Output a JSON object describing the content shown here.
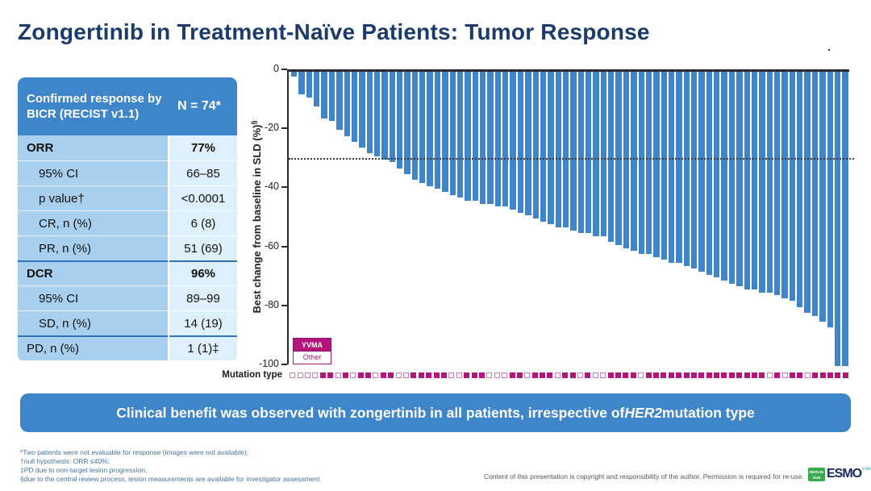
{
  "slide": {
    "title": "Zongertinib in Treatment-Naïve Patients: Tumor Response",
    "stray_dot": ".",
    "banner": {
      "pre": "Clinical benefit was observed with zongertinib in all patients, irrespective of ",
      "em": "HER2",
      "post": " mutation type"
    },
    "footnotes": [
      "*Two patients were not evaluable for response (images were not available);",
      "†null hypothesis: ORR ≤40%;",
      "‡PD due to non-target lesion progression;",
      "§due to the central review process, lesion measurements are available for investigator assessment"
    ],
    "copyright": "Content of this presentation is copyright and responsibility of the author. Permission is required for re-use.",
    "logo": {
      "city": "BERLIN",
      "year": "2025",
      "name": "ESMO",
      "congress": "congress"
    }
  },
  "table": {
    "header": {
      "label": "Confirmed response by BICR (RECIST v1.1)",
      "value": "N = 74*"
    },
    "rows": [
      {
        "label": "ORR",
        "value": "77%"
      },
      {
        "label": "95% CI",
        "value": "66–85"
      },
      {
        "label": "p value†",
        "value": "<0.0001"
      },
      {
        "label": "CR, n (%)",
        "value": "6 (8)"
      },
      {
        "label": "PR, n (%)",
        "value": "51 (69)"
      },
      {
        "label": "DCR",
        "value": "96%"
      },
      {
        "label": "95% CI",
        "value": "89–99"
      },
      {
        "label": "SD, n (%)",
        "value": "14 (19)"
      },
      {
        "label": "PD, n (%)",
        "value": "1 (1)‡"
      }
    ]
  },
  "chart_data": {
    "type": "bar",
    "subtype": "waterfall",
    "title": "",
    "xlabel": "Mutation type",
    "ylabel": "Best change from baseline in SLD (%)",
    "ylabel_sup": "§",
    "ylim": [
      -100,
      0
    ],
    "yticks": [
      0,
      -20,
      -40,
      -60,
      -80,
      -100
    ],
    "grid": false,
    "reference_line": -30,
    "bar_color": "#3e86c9",
    "n_patients": 74,
    "values": [
      -2,
      -8,
      -9,
      -12,
      -16,
      -17,
      -20,
      -22,
      -24,
      -26,
      -28,
      -29,
      -30,
      -31,
      -33,
      -35,
      -37,
      -38,
      -39,
      -40,
      -41,
      -42,
      -43,
      -44,
      -44,
      -45,
      -45,
      -46,
      -46,
      -47,
      -48,
      -49,
      -50,
      -51,
      -52,
      -53,
      -53,
      -54,
      -55,
      -55,
      -56,
      -56,
      -58,
      -59,
      -60,
      -61,
      -62,
      -62,
      -63,
      -64,
      -65,
      -65,
      -66,
      -67,
      -68,
      -69,
      -70,
      -71,
      -72,
      -73,
      -74,
      -74,
      -75,
      -75,
      -76,
      -77,
      -78,
      -80,
      -82,
      -83,
      -85,
      -87,
      -100,
      -100
    ],
    "legend": [
      {
        "label": "YVMA",
        "filled": true,
        "color": "#b5137d"
      },
      {
        "label": "Other",
        "filled": false,
        "color": "#b5137d"
      }
    ],
    "mutation_squares": [
      0,
      0,
      0,
      0,
      1,
      1,
      0,
      1,
      0,
      1,
      1,
      0,
      1,
      1,
      0,
      0,
      1,
      1,
      1,
      1,
      1,
      0,
      0,
      1,
      1,
      1,
      0,
      0,
      0,
      1,
      1,
      0,
      1,
      1,
      1,
      0,
      1,
      1,
      0,
      1,
      0,
      0,
      1,
      1,
      1,
      1,
      0,
      1,
      1,
      1,
      1,
      1,
      1,
      1,
      1,
      1,
      1,
      1,
      1,
      1,
      1,
      1,
      1,
      0,
      1,
      0,
      1,
      1,
      0,
      1,
      1,
      1,
      1,
      1
    ]
  },
  "colors": {
    "title_navy": "#1b3b6b",
    "bar_blue": "#3e86c9",
    "table_label_bg": "#a9cfee",
    "table_value_bg": "#def0fb",
    "magenta": "#b5137d",
    "footnote_blue": "#48719b",
    "logo_green": "#3aaa4e",
    "logo_teal": "#00a99d"
  }
}
